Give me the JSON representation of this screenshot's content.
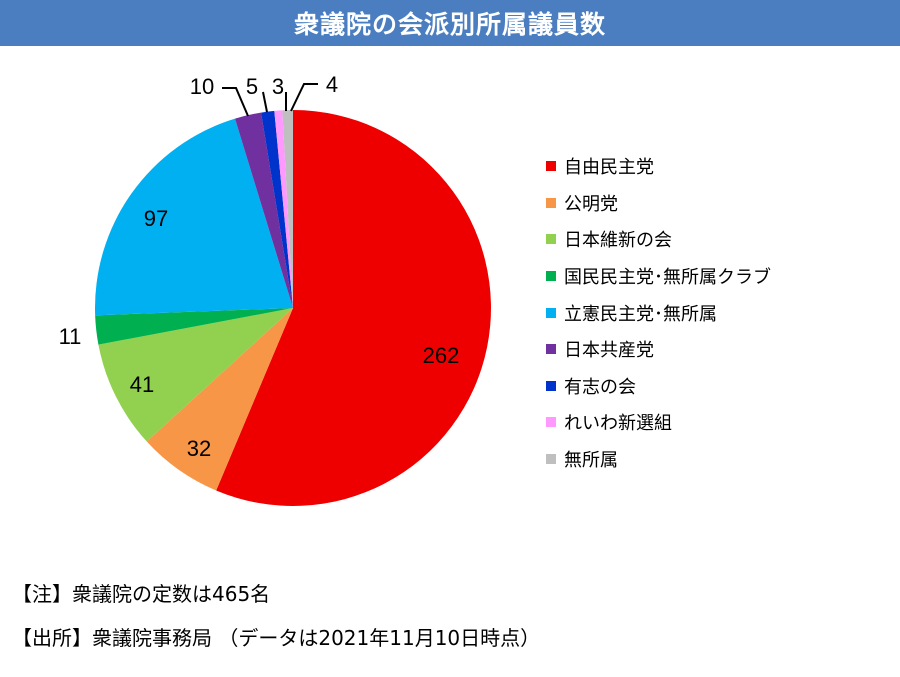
{
  "title": "衆議院の会派別所属議員数",
  "chart_data": {
    "type": "pie",
    "title": "衆議院の会派別所属議員数",
    "categories": [
      "自由民主党",
      "公明党",
      "日本維新の会",
      "国民民主党･無所属クラブ",
      "立憲民主党･無所属",
      "日本共産党",
      "有志の会",
      "れいわ新選組",
      "無所属"
    ],
    "values": [
      262,
      32,
      41,
      11,
      97,
      10,
      5,
      3,
      4
    ],
    "colors": [
      "#ee0000",
      "#f79646",
      "#92d050",
      "#00b050",
      "#00b0f0",
      "#7030a0",
      "#0033cc",
      "#ff99ff",
      "#bfbfbf"
    ],
    "start": "12 o'clock",
    "direction": "clockwise",
    "legend": "right"
  },
  "notes": [
    "【注】衆議院の定数は465名",
    "【出所】衆議院事務局 （データは2021年11月10日時点）"
  ]
}
